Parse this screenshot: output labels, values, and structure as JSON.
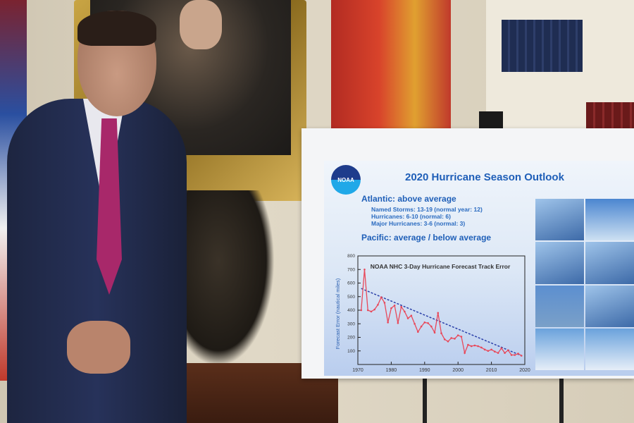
{
  "poster": {
    "logo_text": "NOAA",
    "title": "2020 Hurricane Season Outlook",
    "atlantic_heading": "Atlantic: above average",
    "atlantic_lines": [
      "Named Storms: 13-19 (normal year: 12)",
      "Hurricanes: 6-10 (normal: 6)",
      "Major Hurricanes: 3-6 (normal: 3)"
    ],
    "pacific_heading": "Pacific: average / below average"
  },
  "chart_data": {
    "type": "line",
    "title": "NOAA NHC 3-Day Hurricane Forecast Track Error",
    "xlabel": "",
    "ylabel": "Forecast Error (nautical miles)",
    "xlim": [
      1970,
      2020
    ],
    "ylim": [
      0,
      800
    ],
    "xticks": [
      1970,
      1980,
      1990,
      2000,
      2010,
      2020
    ],
    "yticks": [
      100,
      200,
      300,
      400,
      500,
      600,
      700,
      800
    ],
    "series": [
      {
        "color": "#e8485a",
        "x": [
          1971,
          1972,
          1973,
          1974,
          1975,
          1976,
          1977,
          1978,
          1979,
          1980,
          1981,
          1982,
          1983,
          1984,
          1985,
          1986,
          1987,
          1988,
          1989,
          1990,
          1991,
          1992,
          1993,
          1994,
          1995,
          1996,
          1997,
          1998,
          1999,
          2000,
          2001,
          2002,
          2003,
          2004,
          2005,
          2006,
          2007,
          2008,
          2009,
          2010,
          2011,
          2012,
          2013,
          2014,
          2015,
          2016,
          2017,
          2018,
          2019
        ],
        "y": [
          400,
          700,
          400,
          390,
          405,
          440,
          495,
          455,
          310,
          415,
          435,
          305,
          425,
          390,
          340,
          360,
          300,
          240,
          280,
          310,
          305,
          280,
          235,
          380,
          230,
          185,
          170,
          195,
          190,
          215,
          205,
          85,
          145,
          135,
          140,
          135,
          125,
          110,
          100,
          110,
          95,
          85,
          120,
          85,
          105,
          70,
          70,
          80,
          65
        ]
      }
    ],
    "trend": {
      "color": "#2a3fa8",
      "style": "dashed",
      "x": [
        1971,
        2019
      ],
      "y": [
        560,
        65
      ]
    }
  }
}
